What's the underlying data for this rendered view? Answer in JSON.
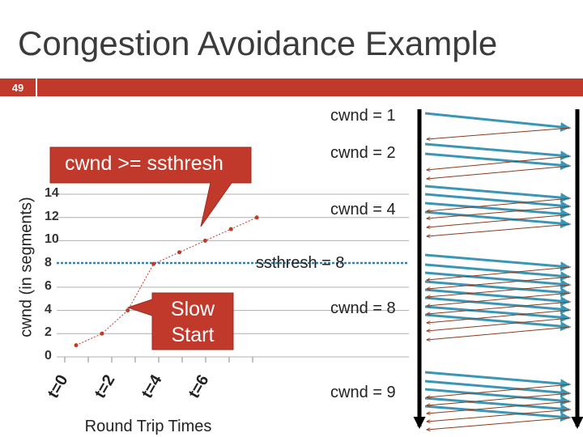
{
  "slide": {
    "title": "Congestion Avoidance Example",
    "number": "49"
  },
  "labels": {
    "cwnd1": "cwnd = 1",
    "cwnd2": "cwnd = 2",
    "cwnd4": "cwnd = 4",
    "ssthresh": "ssthresh = 8",
    "cwnd8": "cwnd = 8",
    "cwnd9": "cwnd = 9",
    "callout_ca": "cwnd >= ssthresh",
    "callout_ss": "Slow Start"
  },
  "colors": {
    "accent_red": "#c0392b",
    "arrow_blue": "#3a96b4",
    "arrow_brown": "#8b3a1a",
    "series_red": "#c0392b"
  },
  "chart_data": {
    "type": "line",
    "ylabel": "cwnd (in segments)",
    "xlabel": "Round Trip Times",
    "y_ticks": [
      "0",
      "2",
      "4",
      "6",
      "8",
      "10",
      "12",
      "14"
    ],
    "x_ticks": [
      "t=0",
      "t=2",
      "t=4",
      "t=6"
    ],
    "ylim": [
      0,
      14
    ],
    "xlim": [
      0,
      8
    ],
    "series": [
      {
        "x": [
          0,
          1,
          2,
          3,
          4,
          5,
          6,
          7
        ],
        "values": [
          1,
          2,
          4,
          8,
          9,
          10,
          11,
          12
        ]
      }
    ],
    "threshold": 8,
    "grid": true
  }
}
